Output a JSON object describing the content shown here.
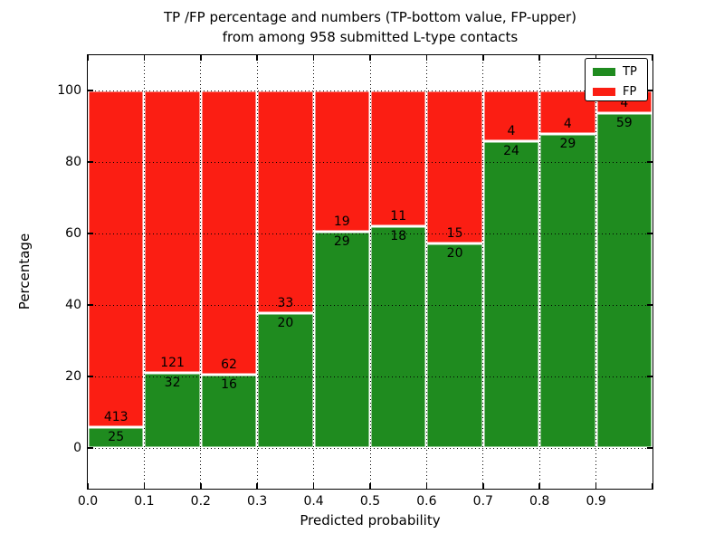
{
  "chart_data": {
    "type": "bar",
    "stacked_percentage": true,
    "title_line1": "TP /FP percentage and numbers (TP-bottom value, FP-upper)",
    "title_line2": "from among 958 submitted L-type contacts",
    "xlabel": "Predicted probability",
    "ylabel": "Percentage",
    "x_tick_labels": [
      "0.0",
      "0.1",
      "0.2",
      "0.3",
      "0.4",
      "0.5",
      "0.6",
      "0.7",
      "0.8",
      "0.9"
    ],
    "y_tick_values": [
      0,
      20,
      40,
      60,
      80,
      100
    ],
    "xlim": [
      0.0,
      1.0
    ],
    "ylim_displayed": [
      -11.4,
      109.8
    ],
    "bin_width": 0.1,
    "grid": "dotted",
    "total_submitted": 958,
    "legend": {
      "position": "upper-right",
      "entries": [
        {
          "label": "TP",
          "color": "#1f8b1f"
        },
        {
          "label": "FP",
          "color": "#fb1e13"
        }
      ]
    },
    "bars": [
      {
        "range": "0.0-0.1",
        "tp": 25,
        "fp": 413,
        "tp_pct": 5.71,
        "fp_pct": 94.29
      },
      {
        "range": "0.1-0.2",
        "tp": 32,
        "fp": 121,
        "tp_pct": 20.92,
        "fp_pct": 79.08
      },
      {
        "range": "0.2-0.3",
        "tp": 16,
        "fp": 62,
        "tp_pct": 20.51,
        "fp_pct": 79.49
      },
      {
        "range": "0.3-0.4",
        "tp": 20,
        "fp": 33,
        "tp_pct": 37.74,
        "fp_pct": 62.26
      },
      {
        "range": "0.4-0.5",
        "tp": 29,
        "fp": 19,
        "tp_pct": 60.42,
        "fp_pct": 39.58
      },
      {
        "range": "0.5-0.6",
        "tp": 18,
        "fp": 11,
        "tp_pct": 62.07,
        "fp_pct": 37.93
      },
      {
        "range": "0.6-0.7",
        "tp": 20,
        "fp": 15,
        "tp_pct": 57.14,
        "fp_pct": 42.86
      },
      {
        "range": "0.7-0.8",
        "tp": 24,
        "fp": 4,
        "tp_pct": 85.71,
        "fp_pct": 14.29
      },
      {
        "range": "0.8-0.9",
        "tp": 29,
        "fp": 4,
        "tp_pct": 87.88,
        "fp_pct": 12.12
      },
      {
        "range": "0.9-1.0",
        "tp": 59,
        "fp": 4,
        "tp_pct": 93.65,
        "fp_pct": 6.35
      }
    ]
  },
  "colors": {
    "tp": "#1f8b1f",
    "fp": "#fb1e13",
    "grid": "#000000",
    "bar_edge": "#ffffff",
    "text": "#000000",
    "background": "#ffffff"
  }
}
